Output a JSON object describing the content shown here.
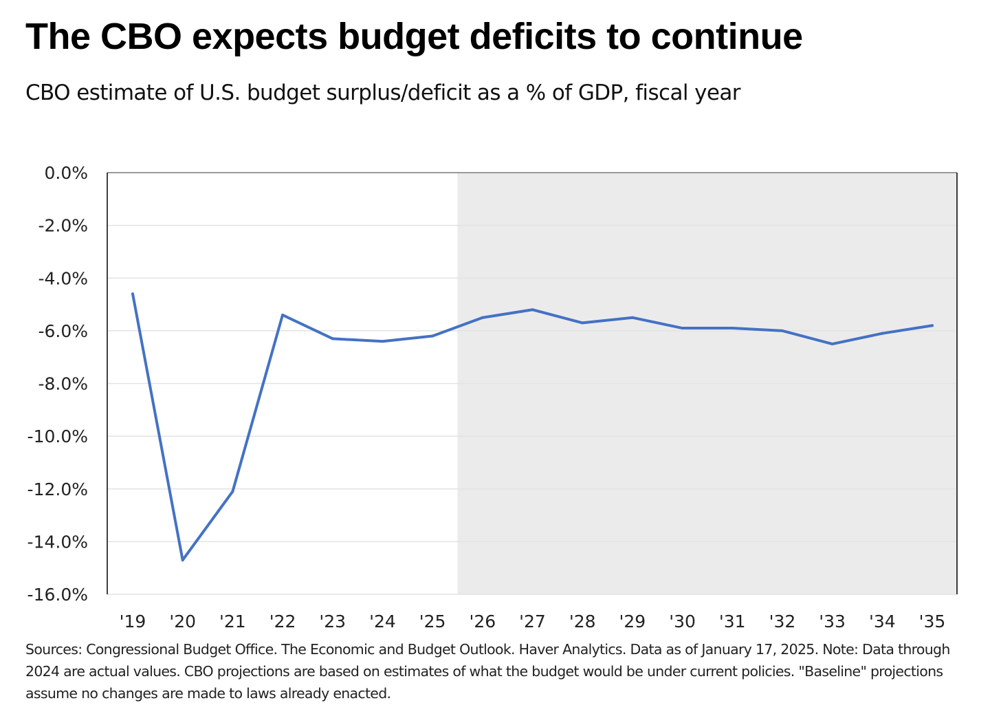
{
  "header": {
    "title": "The CBO expects budget deficits to continue",
    "subtitle": "CBO estimate of U.S. budget surplus/deficit as a % of GDP, fiscal year"
  },
  "footnote": "Sources: Congressional Budget Office. The Economic and Budget Outlook. Haver Analytics. Data as of January 17, 2025. Note: Data through 2024 are actual values. CBO projections are based on estimates of what the budget would be under current policies. \"Baseline\" projections assume no changes are made to laws already enacted.",
  "colors": {
    "line": "#4472c4",
    "projection_shade": "#ecebec",
    "gridline": "#e3e3e3",
    "axis": "#000000"
  },
  "chart_data": {
    "type": "line",
    "title": "The CBO expects budget deficits to continue",
    "subtitle": "CBO estimate of U.S. budget surplus/deficit as a % of GDP, fiscal year",
    "xlabel": "",
    "ylabel": "",
    "categories": [
      "'19",
      "'20",
      "'21",
      "'22",
      "'23",
      "'24",
      "'25",
      "'26",
      "'27",
      "'28",
      "'29",
      "'30",
      "'31",
      "'32",
      "'33",
      "'34",
      "'35"
    ],
    "series": [
      {
        "name": "Budget surplus/deficit (% of GDP)",
        "values": [
          -4.6,
          -14.7,
          -12.1,
          -5.4,
          -6.3,
          -6.4,
          -6.2,
          -5.5,
          -5.2,
          -5.7,
          -5.5,
          -5.9,
          -5.9,
          -6.0,
          -6.5,
          -6.1,
          -5.8
        ]
      }
    ],
    "ylim": [
      -16,
      0
    ],
    "yticks": [
      0,
      -2,
      -4,
      -6,
      -8,
      -10,
      -12,
      -14,
      -16
    ],
    "ytick_labels": [
      "0.0%",
      "-2.0%",
      "-4.0%",
      "-6.0%",
      "-8.0%",
      "-10.0%",
      "-12.0%",
      "-14.0%",
      "-16.0%"
    ],
    "grid": true,
    "legend": "none",
    "shaded_region": {
      "from_category": "'25",
      "to_category": "'35",
      "start_offset": 0.5,
      "meaning": "projection period"
    }
  }
}
